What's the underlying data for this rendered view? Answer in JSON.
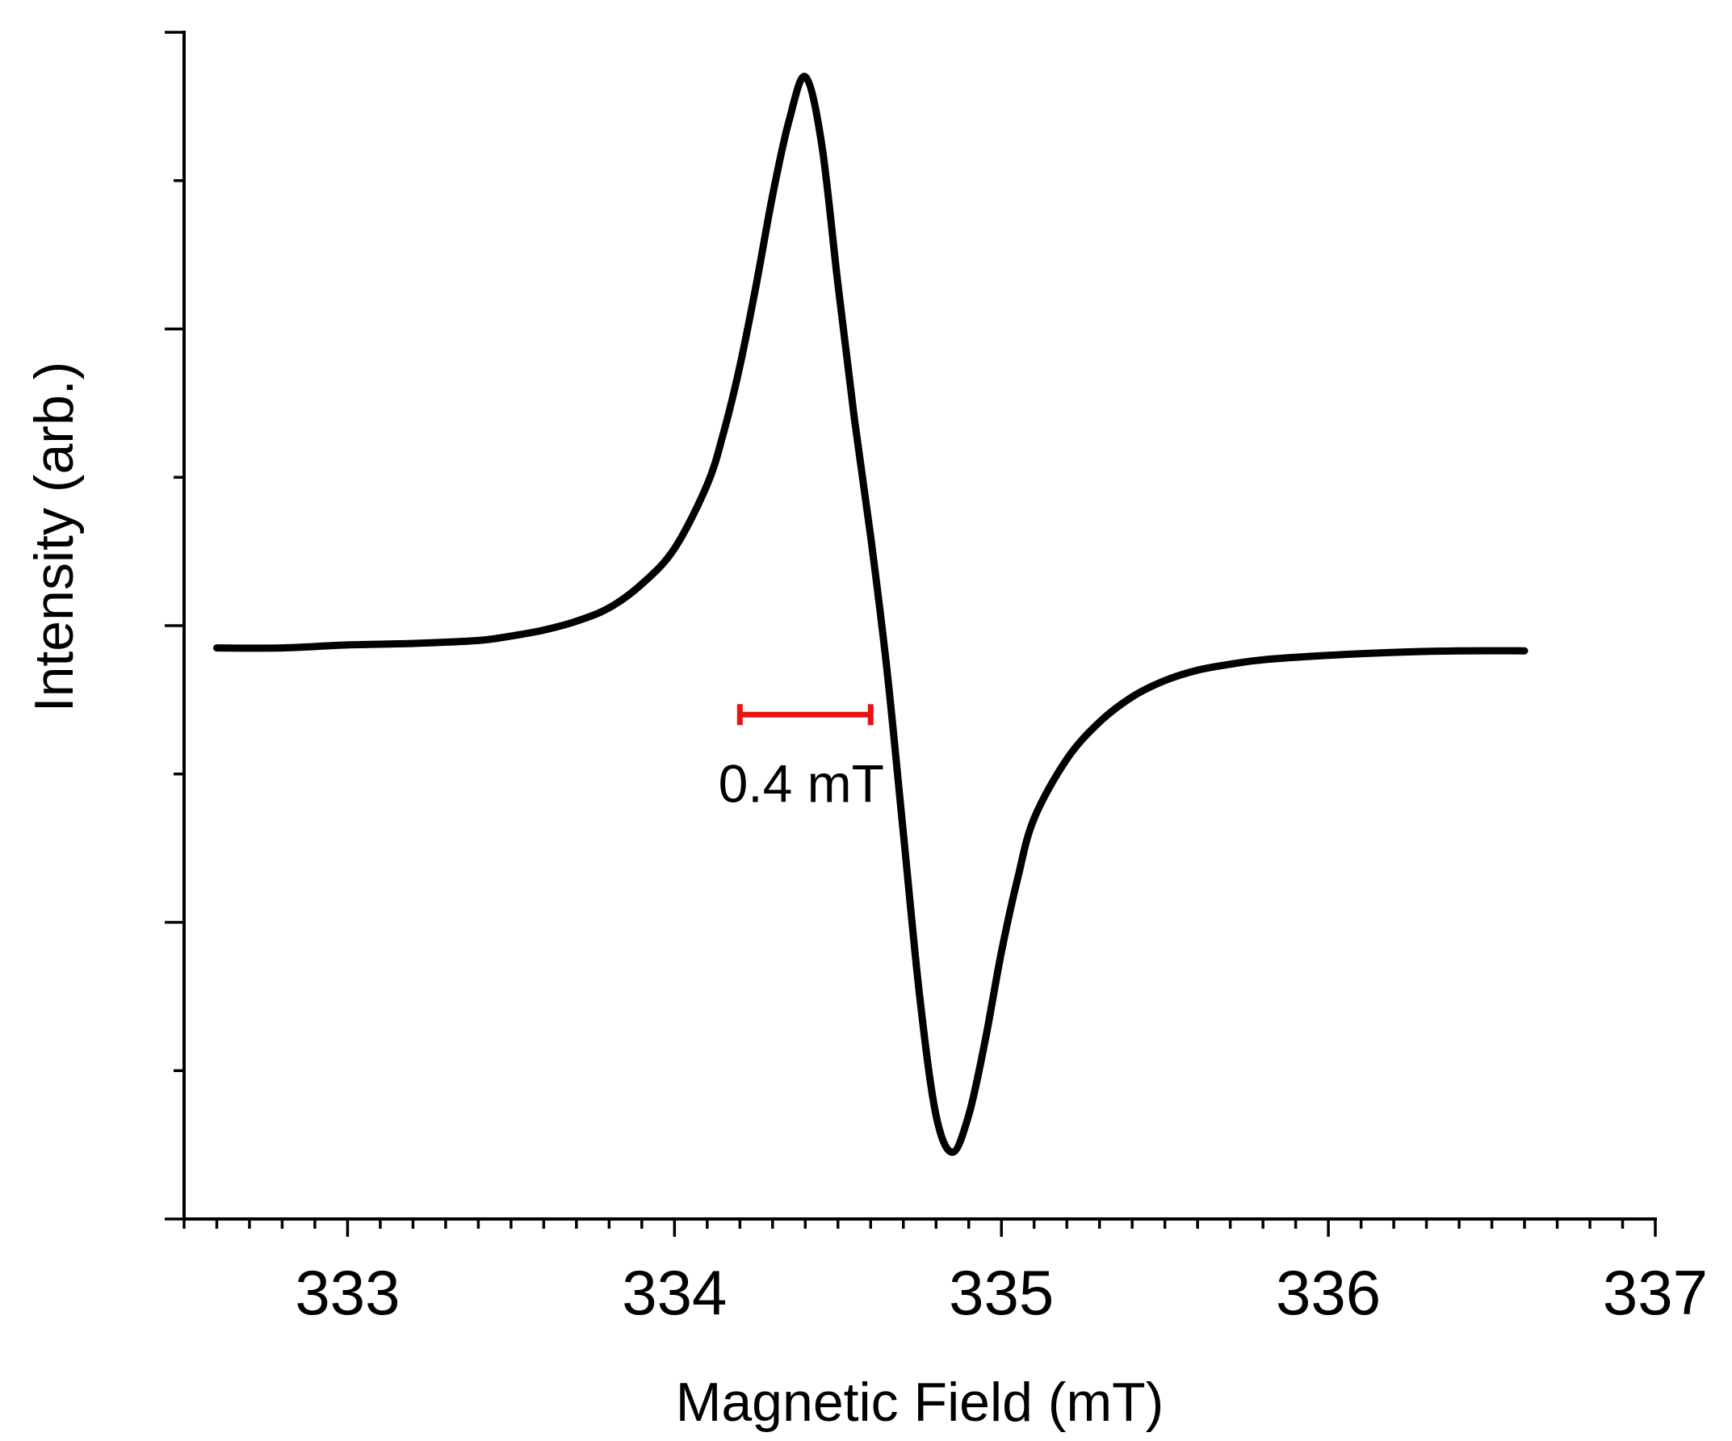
{
  "chart_data": {
    "type": "line",
    "title": "",
    "xlabel": "Magnetic Field (mT)",
    "ylabel": "Intensity (arb.)",
    "xlim": [
      332.5,
      337.0
    ],
    "ylim": [
      -4.0,
      4.0
    ],
    "x_major_ticks": [
      333,
      334,
      335,
      336,
      337
    ],
    "x_tick_labels": [
      "333",
      "334",
      "335",
      "336",
      "337"
    ],
    "x_minor_step": 0.1,
    "y_major_ticks": [
      -4,
      -2,
      0,
      2,
      4
    ],
    "y_minor_ticks": [
      -3,
      -1,
      1,
      3
    ],
    "y_tick_labels_shown": false,
    "grid": false,
    "legend": "none",
    "series": [
      {
        "color": "#000000",
        "x": [
          332.6,
          332.8,
          333.0,
          333.2,
          333.4,
          333.5,
          333.6,
          333.7,
          333.8,
          333.9,
          334.0,
          334.1,
          334.15,
          334.2,
          334.25,
          334.3,
          334.35,
          334.4,
          334.45,
          334.5,
          334.55,
          334.6,
          334.65,
          334.7,
          334.75,
          334.8,
          334.85,
          334.9,
          334.95,
          335.0,
          335.05,
          335.1,
          335.2,
          335.3,
          335.4,
          335.5,
          335.6,
          335.7,
          335.8,
          336.0,
          336.2,
          336.4,
          336.6
        ],
        "y": [
          -0.15,
          -0.15,
          -0.13,
          -0.12,
          -0.1,
          -0.07,
          -0.03,
          0.03,
          0.12,
          0.28,
          0.52,
          0.95,
          1.3,
          1.75,
          2.3,
          2.9,
          3.4,
          3.7,
          3.25,
          2.3,
          1.4,
          0.6,
          -0.3,
          -1.4,
          -2.5,
          -3.3,
          -3.55,
          -3.3,
          -2.8,
          -2.2,
          -1.7,
          -1.3,
          -0.9,
          -0.65,
          -0.48,
          -0.37,
          -0.3,
          -0.26,
          -0.23,
          -0.2,
          -0.18,
          -0.17,
          -0.17
        ]
      }
    ],
    "annotations": [
      {
        "type": "scale-bar",
        "x_start": 334.2,
        "x_end": 334.6,
        "y": -0.6,
        "color": "#e81414",
        "label": "0.4 mT"
      }
    ]
  }
}
